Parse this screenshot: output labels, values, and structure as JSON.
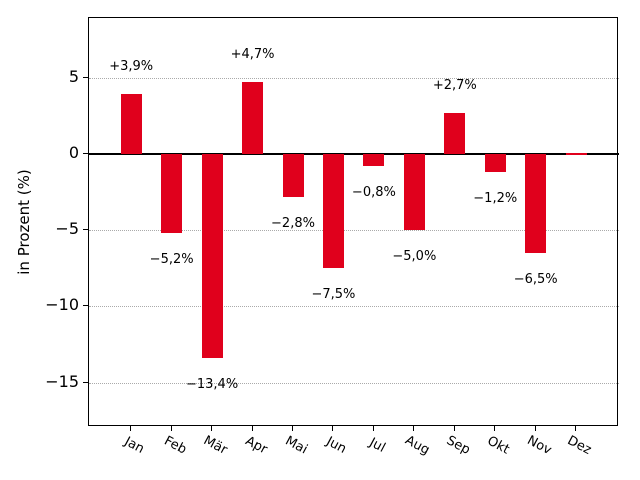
{
  "chart_data": {
    "type": "bar",
    "title": "",
    "xlabel": "",
    "ylabel": "in Prozent (%)",
    "categories": [
      "Jan",
      "Feb",
      "Mär",
      "Apr",
      "Mai",
      "Jun",
      "Jul",
      "Aug",
      "Sep",
      "Okt",
      "Nov",
      "Dez"
    ],
    "values": [
      3.9,
      -5.2,
      -13.4,
      4.7,
      -2.8,
      -7.5,
      -0.8,
      -5.0,
      2.7,
      -1.2,
      -6.5,
      0.0
    ],
    "bar_labels": [
      "+3,9%",
      "−5,2%",
      "−13,4%",
      "+4,7%",
      "−2,8%",
      "−7,5%",
      "−0,8%",
      "−5,0%",
      "+2,7%",
      "−1,2%",
      "−6,5%",
      ""
    ],
    "yticks": [
      5,
      0,
      -5,
      -10,
      -15
    ],
    "ytick_labels": [
      "5",
      "0",
      "−5",
      "−10",
      "−15"
    ],
    "ylim": [
      -17.9,
      8.9
    ],
    "grid": "horizontal dotted at yticks, solid line at 0",
    "legend_position": null,
    "bar_color": "#e0001c",
    "grid_color": "#aaaaaa",
    "axis_color": "#000000",
    "text_color": "#000000",
    "background_color": "#ffffff"
  }
}
